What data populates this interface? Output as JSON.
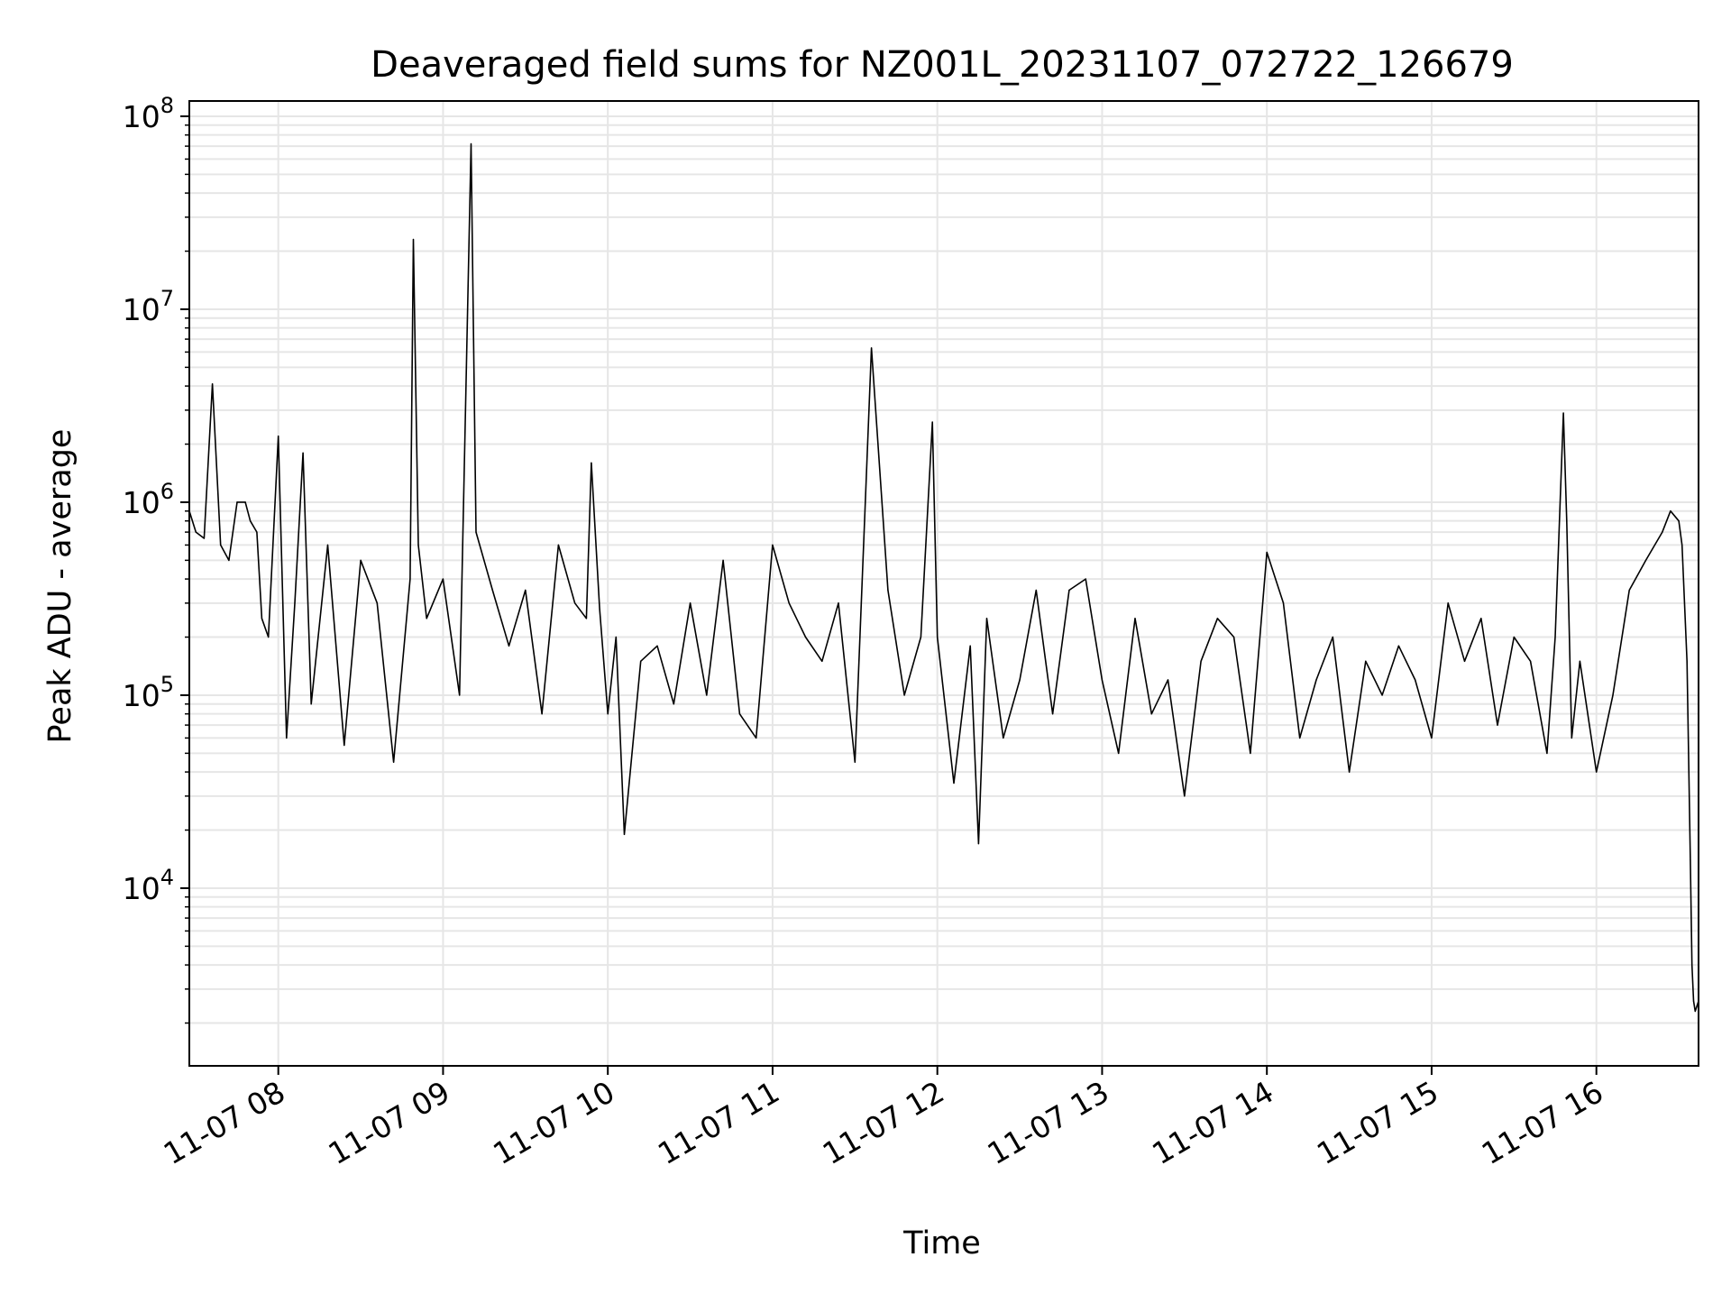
{
  "chart_data": {
    "type": "line",
    "title": "Deaveraged field sums for NZ001L_20231107_072722_126679",
    "xlabel": "Time",
    "ylabel": "Peak ADU - average",
    "yscale": "log",
    "ylim": [
      1200,
      120000000
    ],
    "xlim_hours": [
      7.46,
      16.62
    ],
    "grid": true,
    "line_color": "#000000",
    "x_ticks": [
      {
        "hour": 8,
        "label": "11-07 08"
      },
      {
        "hour": 9,
        "label": "11-07 09"
      },
      {
        "hour": 10,
        "label": "11-07 10"
      },
      {
        "hour": 11,
        "label": "11-07 11"
      },
      {
        "hour": 12,
        "label": "11-07 12"
      },
      {
        "hour": 13,
        "label": "11-07 13"
      },
      {
        "hour": 14,
        "label": "11-07 14"
      },
      {
        "hour": 15,
        "label": "11-07 15"
      },
      {
        "hour": 16,
        "label": "11-07 16"
      }
    ],
    "y_ticks": [
      {
        "value": 10000,
        "base": "10",
        "exp": "4"
      },
      {
        "value": 100000,
        "base": "10",
        "exp": "5"
      },
      {
        "value": 1000000,
        "base": "10",
        "exp": "6"
      },
      {
        "value": 10000000,
        "base": "10",
        "exp": "7"
      },
      {
        "value": 100000000,
        "base": "10",
        "exp": "8"
      }
    ],
    "series": [
      {
        "x_hours": [
          7.46,
          7.5,
          7.55,
          7.6,
          7.65,
          7.7,
          7.75,
          7.8,
          7.83,
          7.87,
          7.9,
          7.94,
          8.0,
          8.05,
          8.1,
          8.15,
          8.2,
          8.3,
          8.4,
          8.5,
          8.6,
          8.7,
          8.8,
          8.82,
          8.85,
          8.9,
          9.0,
          9.1,
          9.17,
          9.2,
          9.3,
          9.4,
          9.5,
          9.6,
          9.7,
          9.8,
          9.87,
          9.9,
          9.95,
          10.0,
          10.05,
          10.1,
          10.2,
          10.3,
          10.4,
          10.5,
          10.6,
          10.7,
          10.8,
          10.9,
          11.0,
          11.1,
          11.2,
          11.3,
          11.4,
          11.5,
          11.6,
          11.7,
          11.8,
          11.9,
          11.97,
          12.0,
          12.1,
          12.2,
          12.25,
          12.3,
          12.4,
          12.5,
          12.6,
          12.7,
          12.8,
          12.9,
          13.0,
          13.1,
          13.2,
          13.3,
          13.4,
          13.5,
          13.6,
          13.7,
          13.8,
          13.9,
          14.0,
          14.1,
          14.2,
          14.3,
          14.4,
          14.5,
          14.6,
          14.7,
          14.8,
          14.9,
          15.0,
          15.1,
          15.2,
          15.3,
          15.4,
          15.5,
          15.6,
          15.7,
          15.75,
          15.8,
          15.82,
          15.85,
          15.9,
          16.0,
          16.1,
          16.2,
          16.3,
          16.4,
          16.45,
          16.5,
          16.52,
          16.55,
          16.57,
          16.58,
          16.59,
          16.6,
          16.62
        ],
        "y": [
          900000,
          700000,
          650000,
          4100000,
          600000,
          500000,
          1000000,
          1000000,
          800000,
          700000,
          250000,
          200000,
          2200000,
          60000,
          300000,
          1800000,
          90000,
          600000,
          55000,
          500000,
          300000,
          45000,
          400000,
          23000000,
          600000,
          250000,
          400000,
          100000,
          72000000,
          700000,
          350000,
          180000,
          350000,
          80000,
          600000,
          300000,
          250000,
          1600000,
          280000,
          80000,
          200000,
          19000,
          150000,
          180000,
          90000,
          300000,
          100000,
          500000,
          80000,
          60000,
          600000,
          300000,
          200000,
          150000,
          300000,
          45000,
          6300000,
          350000,
          100000,
          200000,
          2600000,
          200000,
          35000,
          180000,
          17000,
          250000,
          60000,
          120000,
          350000,
          80000,
          350000,
          400000,
          120000,
          50000,
          250000,
          80000,
          120000,
          30000,
          150000,
          250000,
          200000,
          50000,
          550000,
          300000,
          60000,
          120000,
          200000,
          40000,
          150000,
          100000,
          180000,
          120000,
          60000,
          300000,
          150000,
          250000,
          70000,
          200000,
          150000,
          50000,
          200000,
          2900000,
          800000,
          60000,
          150000,
          40000,
          100000,
          350000,
          500000,
          700000,
          900000,
          800000,
          600000,
          150000,
          14000,
          4000,
          2600,
          2300,
          2600
        ]
      }
    ]
  }
}
